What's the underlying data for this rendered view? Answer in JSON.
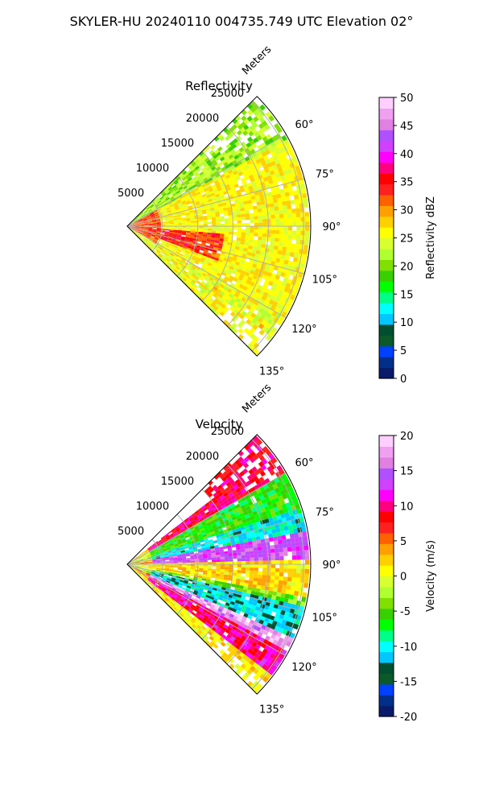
{
  "figure": {
    "suptitle": "SKYLER-HU  20240110  004735.749 UTC Elevation 02°"
  },
  "colors": {
    "grid": "#b0b0b0",
    "frame": "#000000",
    "background": "#ffffff"
  },
  "chart_data": [
    {
      "type": "heatmap",
      "subtype": "polar-sector (PPI radar scan)",
      "title": "Reflectivity",
      "radial_axis": {
        "label": "Meters",
        "ticks": [
          5000,
          10000,
          15000,
          20000,
          25000
        ],
        "max": 26000
      },
      "angular_axis": {
        "ticks_deg": [
          60,
          75,
          90,
          105,
          120,
          135
        ],
        "tick_labels": [
          "60°",
          "75°",
          "90°",
          "105°",
          "120°",
          "135°"
        ],
        "range_deg": [
          45,
          135
        ],
        "direction": "clockwise from north"
      },
      "grid": true,
      "colorbar": {
        "label": "Reflectivity dBZ",
        "range": [
          0,
          50
        ],
        "ticks": [
          0,
          5,
          10,
          15,
          20,
          25,
          30,
          35,
          40,
          45,
          50
        ],
        "colors": [
          "#0a1a6a",
          "#00308a",
          "#0040ff",
          "#0a5a2a",
          "#005030",
          "#00c8ff",
          "#00ffff",
          "#00ff88",
          "#00ff00",
          "#38d000",
          "#80e000",
          "#b0ff30",
          "#d8ff30",
          "#ffff00",
          "#ffd000",
          "#ffa000",
          "#ff6000",
          "#ff2020",
          "#ff0000",
          "#ff0080",
          "#ff00ff",
          "#d040ff",
          "#b050ff",
          "#e080e0",
          "#f0a0f0",
          "#ffd0ff"
        ]
      },
      "field_description": [
        {
          "feature": "strong echo near radar",
          "range_m": [
            0,
            5000
          ],
          "value_dbz": 33
        },
        {
          "feature": "red band",
          "azimuth_deg": [
            95,
            110
          ],
          "range_m": [
            3000,
            14000
          ],
          "value_dbz": 34
        },
        {
          "feature": "general field",
          "value_dbz": 26
        },
        {
          "feature": "weak edge",
          "azimuth_deg": [
            45,
            62
          ],
          "value_dbz": 21
        }
      ]
    },
    {
      "type": "heatmap",
      "subtype": "polar-sector (PPI radar scan)",
      "title": "Velocity",
      "radial_axis": {
        "label": "Meters",
        "ticks": [
          5000,
          10000,
          15000,
          20000,
          25000
        ],
        "max": 26000
      },
      "angular_axis": {
        "ticks_deg": [
          60,
          75,
          90,
          105,
          120,
          135
        ],
        "tick_labels": [
          "60°",
          "75°",
          "90°",
          "105°",
          "120°",
          "135°"
        ],
        "range_deg": [
          45,
          135
        ],
        "direction": "clockwise from north"
      },
      "grid": true,
      "colorbar": {
        "label": "Velocity (m/s)",
        "range": [
          -20,
          20
        ],
        "ticks": [
          -20,
          -15,
          -10,
          -5,
          0,
          5,
          10,
          15,
          20
        ],
        "colors": [
          "#0a1a6a",
          "#00308a",
          "#0040ff",
          "#0a5a2a",
          "#005030",
          "#00c8ff",
          "#00ffff",
          "#00ff88",
          "#00ff00",
          "#38d000",
          "#80e000",
          "#b0ff30",
          "#d8ff30",
          "#ffff00",
          "#ffd000",
          "#ffa000",
          "#ff6000",
          "#ff2020",
          "#ff0000",
          "#ff0080",
          "#ff00ff",
          "#d040ff",
          "#b050ff",
          "#e080e0",
          "#f0a0f0",
          "#ffd0ff"
        ]
      },
      "field_description": [
        {
          "feature": "edge band",
          "azimuth_deg": [
            55,
            70
          ],
          "value_ms": -6
        },
        {
          "feature": "outbound band",
          "azimuth_deg": [
            80,
            88
          ],
          "value_ms": 14
        },
        {
          "feature": "near-zero core",
          "azimuth_deg": [
            88,
            100
          ],
          "value_ms": 1
        },
        {
          "feature": "inbound band",
          "azimuth_deg": [
            103,
            115
          ],
          "value_ms": -10
        },
        {
          "feature": "outbound band",
          "azimuth_deg": [
            117,
            128
          ],
          "value_ms": 11
        }
      ]
    }
  ]
}
